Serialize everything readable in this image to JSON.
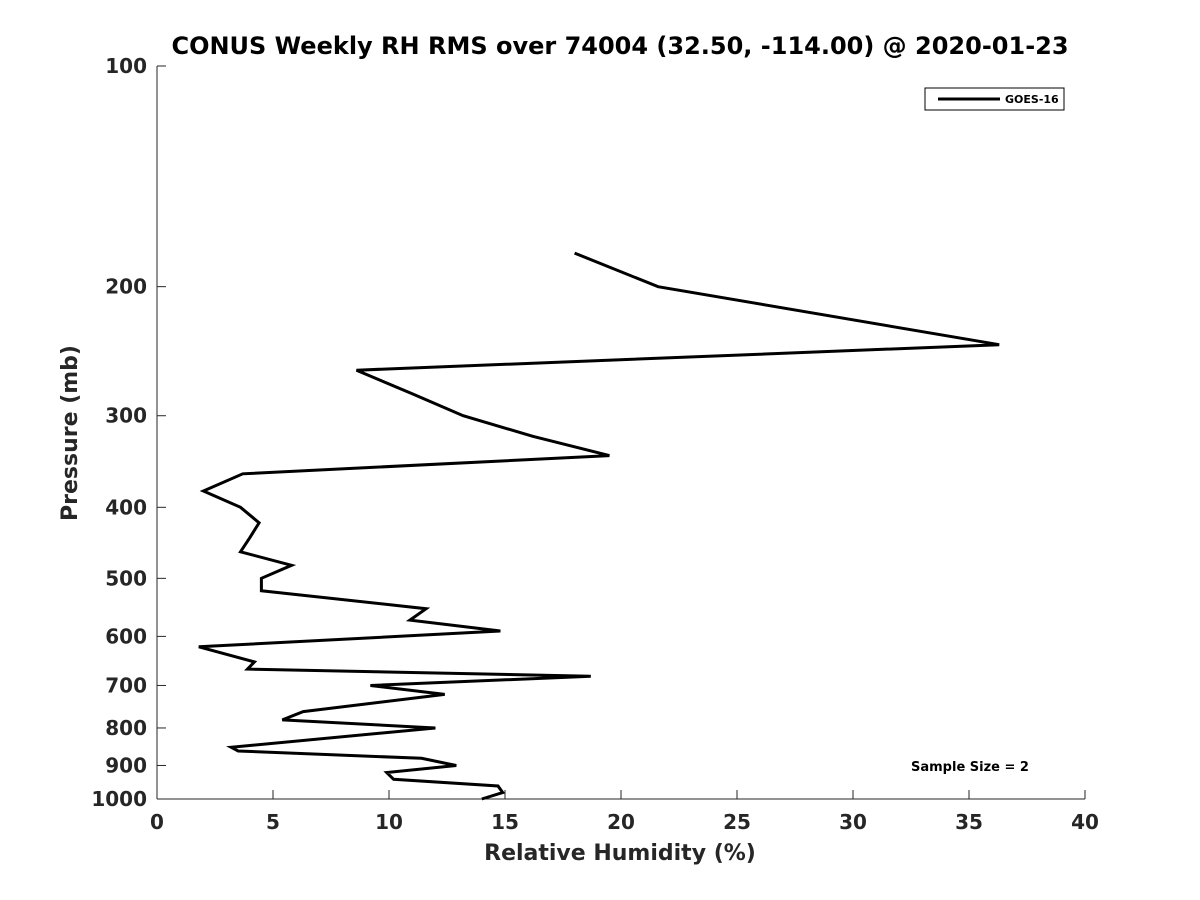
{
  "chart_data": {
    "type": "line",
    "title": "CONUS Weekly RH RMS over 74004 (32.50, -114.00) @ 2020-01-23",
    "xlabel": "Relative Humidity (%)",
    "ylabel": "Pressure (mb)",
    "xlim": [
      0,
      40
    ],
    "ylim": [
      100,
      1000
    ],
    "y_scale": "log",
    "y_direction": "reversed",
    "x_ticks": [
      0,
      5,
      10,
      15,
      20,
      25,
      30,
      35,
      40
    ],
    "x_tick_labels": [
      "0",
      "5",
      "10",
      "15",
      "20",
      "25",
      "30",
      "35",
      "40"
    ],
    "y_ticks": [
      100,
      200,
      300,
      400,
      500,
      600,
      700,
      800,
      900,
      1000
    ],
    "y_tick_labels": [
      "100",
      "200",
      "300",
      "400",
      "500",
      "600",
      "700",
      "800",
      "900",
      "1000"
    ],
    "grid": false,
    "legend_position": "top-right",
    "annotation": "Sample Size = 2",
    "series": [
      {
        "name": "GOES-16",
        "color": "#000000",
        "points": [
          {
            "x": 18.0,
            "y": 180
          },
          {
            "x": 21.6,
            "y": 200
          },
          {
            "x": 36.3,
            "y": 240
          },
          {
            "x": 8.6,
            "y": 260
          },
          {
            "x": 11.0,
            "y": 280
          },
          {
            "x": 13.2,
            "y": 300
          },
          {
            "x": 16.2,
            "y": 320
          },
          {
            "x": 19.5,
            "y": 340
          },
          {
            "x": 3.7,
            "y": 360
          },
          {
            "x": 2.0,
            "y": 380
          },
          {
            "x": 3.6,
            "y": 400
          },
          {
            "x": 4.4,
            "y": 420
          },
          {
            "x": 4.0,
            "y": 440
          },
          {
            "x": 3.6,
            "y": 460
          },
          {
            "x": 5.8,
            "y": 480
          },
          {
            "x": 4.5,
            "y": 500
          },
          {
            "x": 4.5,
            "y": 520
          },
          {
            "x": 11.6,
            "y": 550
          },
          {
            "x": 10.9,
            "y": 570
          },
          {
            "x": 14.8,
            "y": 590
          },
          {
            "x": 1.8,
            "y": 620
          },
          {
            "x": 4.2,
            "y": 650
          },
          {
            "x": 3.9,
            "y": 665
          },
          {
            "x": 18.7,
            "y": 680
          },
          {
            "x": 9.2,
            "y": 700
          },
          {
            "x": 12.4,
            "y": 720
          },
          {
            "x": 6.3,
            "y": 760
          },
          {
            "x": 5.4,
            "y": 780
          },
          {
            "x": 12.0,
            "y": 800
          },
          {
            "x": 3.2,
            "y": 850
          },
          {
            "x": 3.5,
            "y": 860
          },
          {
            "x": 11.4,
            "y": 880
          },
          {
            "x": 12.9,
            "y": 900
          },
          {
            "x": 9.9,
            "y": 920
          },
          {
            "x": 10.2,
            "y": 940
          },
          {
            "x": 14.7,
            "y": 960
          },
          {
            "x": 14.9,
            "y": 980
          },
          {
            "x": 14.0,
            "y": 1000
          }
        ]
      }
    ]
  }
}
